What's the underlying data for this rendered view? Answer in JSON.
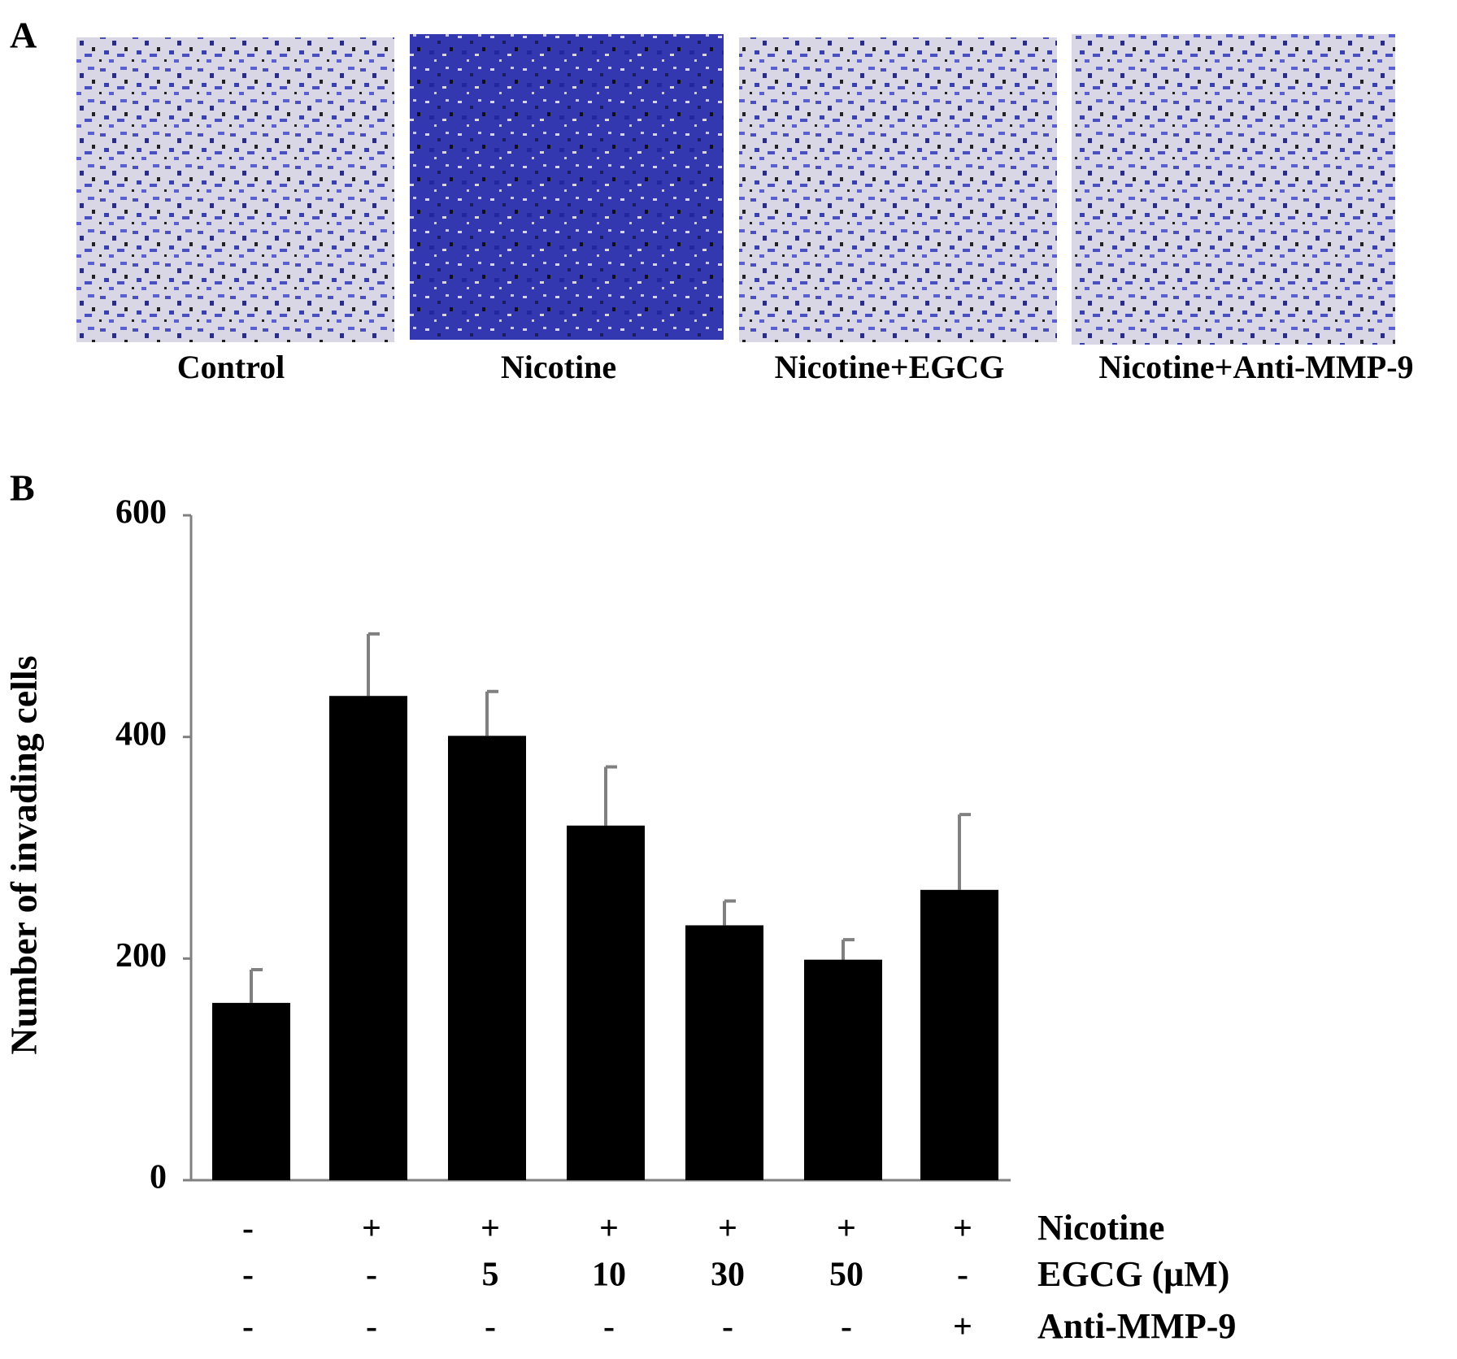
{
  "panel_a": {
    "letter": "A",
    "captions": [
      "Control",
      "Nicotine",
      "Nicotine+EGCG",
      "Nicotine+Anti-MMP-9"
    ]
  },
  "chart_data": {
    "type": "bar",
    "letter": "B",
    "y_label": "Number of invading cells",
    "values": [
      160,
      437,
      401,
      320,
      230,
      199,
      262
    ],
    "errors": [
      30,
      56,
      40,
      53,
      22,
      18,
      68
    ],
    "color": "#000000",
    "error_color": "#808080",
    "ylim": [
      0,
      600
    ],
    "yticks": [
      0,
      200,
      400,
      600
    ],
    "conditions": [
      {
        "label": "Nicotine",
        "values": [
          "-",
          "+",
          "+",
          "+",
          "+",
          "+",
          "+"
        ]
      },
      {
        "label": "EGCG (μM)",
        "values": [
          "-",
          "-",
          "5",
          "10",
          "30",
          "50",
          "-"
        ]
      },
      {
        "label": "Anti-MMP-9",
        "values": [
          "-",
          "-",
          "-",
          "-",
          "-",
          "-",
          "+"
        ]
      }
    ]
  }
}
